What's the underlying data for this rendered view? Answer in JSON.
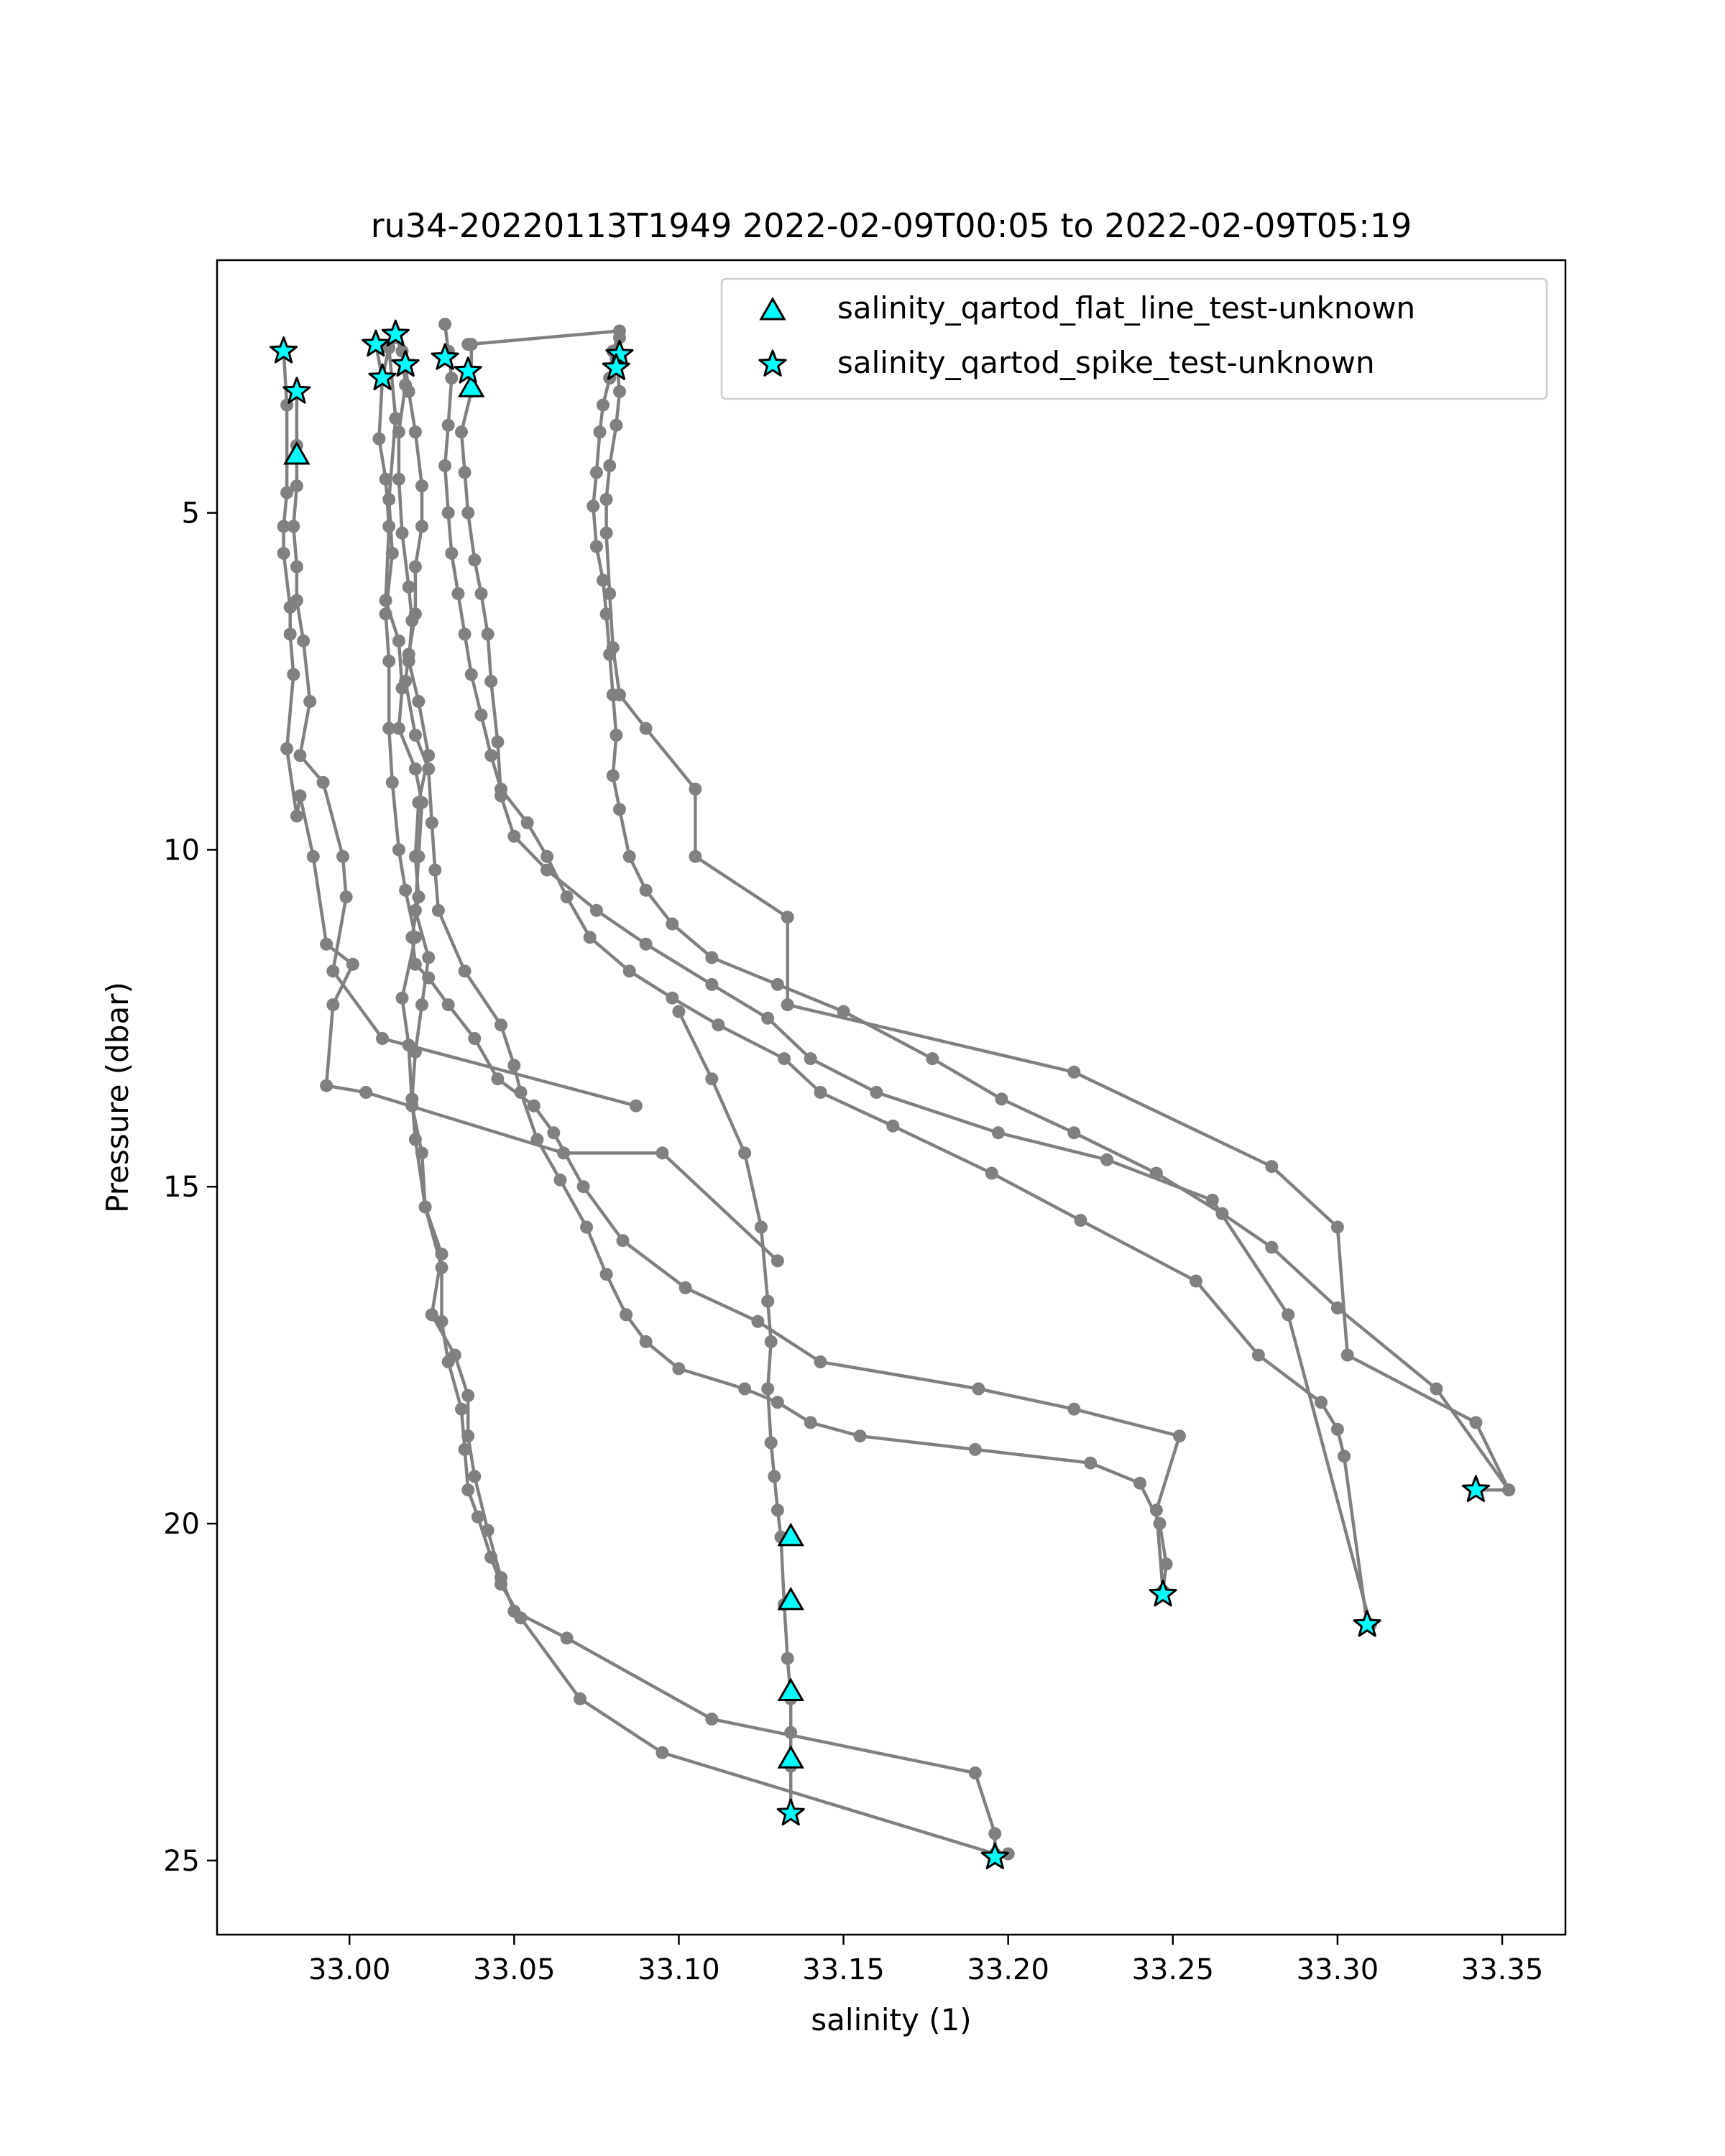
{
  "chart_data": {
    "type": "scatter",
    "title": "ru34-20220113T1949 2022-02-09T00:05 to 2022-02-09T05:19",
    "xlabel": "salinity (1)",
    "ylabel": "Pressure (dbar)",
    "xlim": [
      32.9598,
      33.3692
    ],
    "ylim": [
      26.1,
      1.25
    ],
    "y_inverted": true,
    "x_ticks": [
      "33.00",
      "33.05",
      "33.10",
      "33.15",
      "33.20",
      "33.25",
      "33.30",
      "33.35"
    ],
    "x_tick_values": [
      33.0,
      33.05,
      33.1,
      33.15,
      33.2,
      33.25,
      33.3,
      33.35
    ],
    "y_ticks": [
      "5",
      "10",
      "15",
      "20",
      "25"
    ],
    "y_tick_values": [
      5,
      10,
      15,
      20,
      25
    ],
    "grid": false,
    "legend_position": "top-right",
    "colors": {
      "profile": "#808080",
      "flag": "#00ffff",
      "flag_edge": "#000000"
    },
    "profile_series": [
      {
        "x": [
          32.98,
          32.981,
          32.981,
          32.98,
          32.98,
          32.982,
          32.982,
          32.983,
          32.981,
          32.984,
          32.985,
          32.989,
          32.993,
          33.001,
          32.995,
          32.993,
          33.005,
          33.065,
          33.095,
          33.13
        ],
        "y": [
          2.6,
          3.4,
          4.7,
          5.2,
          5.6,
          6.4,
          6.8,
          7.4,
          8.5,
          9.5,
          9.2,
          10.1,
          11.4,
          11.7,
          12.3,
          13.5,
          13.6,
          14.5,
          14.5,
          16.1
        ]
      },
      {
        "x": [
          32.984,
          32.984,
          32.984,
          32.983,
          32.984,
          32.984,
          32.986,
          32.988,
          32.985,
          32.992,
          32.998,
          32.999,
          32.995,
          33.01,
          33.087
        ],
        "y": [
          3.2,
          4.0,
          4.6,
          5.2,
          5.8,
          6.3,
          6.9,
          7.8,
          8.6,
          9.0,
          10.1,
          10.7,
          11.8,
          12.8,
          13.8
        ]
      },
      {
        "x": [
          33.008,
          33.01,
          33.009,
          33.011,
          33.012,
          33.011,
          33.015,
          33.016,
          33.015,
          33.02,
          33.022,
          33.021,
          33.02,
          33.024,
          33.022,
          33.02,
          33.019,
          33.02,
          33.023,
          33.028,
          33.025,
          33.032,
          33.036,
          33.036,
          33.038,
          33.042,
          33.046,
          33.05,
          33.066,
          33.11,
          33.19,
          33.196,
          33.196
        ],
        "y": [
          2.5,
          3.0,
          3.9,
          4.5,
          5.2,
          6.3,
          6.9,
          7.6,
          8.2,
          8.8,
          9.3,
          10.1,
          10.9,
          11.6,
          12.3,
          13.0,
          13.7,
          14.3,
          15.3,
          16.0,
          16.9,
          17.5,
          18.1,
          18.7,
          19.3,
          20.1,
          20.8,
          21.3,
          21.7,
          22.9,
          23.7,
          24.6,
          24.95
        ]
      },
      {
        "x": [
          33.01,
          33.012,
          33.014,
          33.012,
          33.013,
          33.011,
          33.012,
          33.012,
          33.013,
          33.015,
          33.017,
          33.02,
          33.016,
          33.018,
          33.019,
          33.022,
          33.023,
          33.028,
          33.028,
          33.03,
          33.034,
          33.035,
          33.036,
          33.039,
          33.043,
          33.046,
          33.052,
          33.07,
          33.095,
          33.196,
          33.2
        ],
        "y": [
          3.0,
          2.55,
          3.6,
          4.8,
          5.6,
          6.5,
          7.2,
          8.2,
          9.0,
          10.0,
          10.6,
          11.3,
          12.2,
          12.9,
          13.8,
          14.5,
          15.3,
          16.2,
          17.0,
          17.6,
          18.3,
          18.9,
          19.5,
          19.9,
          20.5,
          20.9,
          21.4,
          22.6,
          23.4,
          24.9,
          24.9
        ]
      },
      {
        "x": [
          33.014,
          33.016,
          33.017,
          33.015,
          33.015,
          33.016,
          33.018,
          33.019,
          33.018,
          33.021,
          33.024,
          33.021,
          33.02,
          33.021,
          33.019,
          33.02,
          33.024,
          33.03,
          33.038,
          33.045,
          33.056,
          33.062,
          33.071,
          33.083,
          33.102,
          33.124,
          33.143,
          33.191,
          33.22,
          33.252,
          33.245,
          33.247
        ],
        "y": [
          2.4,
          2.6,
          3.1,
          3.8,
          4.5,
          5.3,
          6.1,
          6.6,
          7.2,
          7.8,
          8.6,
          9.3,
          10.1,
          10.7,
          11.3,
          11.7,
          11.9,
          12.3,
          12.8,
          13.4,
          13.8,
          14.2,
          15.0,
          15.8,
          16.5,
          17.0,
          17.6,
          18.0,
          18.3,
          18.7,
          19.8,
          21.0
        ]
      },
      {
        "x": [
          33.017,
          33.018,
          33.02,
          33.022,
          33.022,
          33.02,
          33.02,
          33.018,
          33.017,
          33.02,
          33.024,
          33.025,
          33.026,
          33.027,
          33.035,
          33.046,
          33.05,
          33.052,
          33.057,
          33.064,
          33.072,
          33.078,
          33.084,
          33.09,
          33.1,
          33.12,
          33.13,
          33.14,
          33.155,
          33.19,
          33.225,
          33.24,
          33.246,
          33.248,
          33.247
        ],
        "y": [
          2.8,
          3.2,
          3.8,
          4.6,
          5.2,
          5.8,
          6.5,
          7.1,
          7.5,
          8.3,
          8.8,
          9.6,
          10.3,
          10.9,
          11.8,
          12.6,
          13.2,
          13.6,
          14.3,
          14.9,
          15.6,
          16.3,
          16.9,
          17.3,
          17.7,
          18.0,
          18.2,
          18.5,
          18.7,
          18.9,
          19.1,
          19.4,
          20.0,
          20.6,
          21.0
        ]
      },
      {
        "x": [
          33.029,
          33.03,
          33.031,
          33.03,
          33.029,
          33.03,
          33.031,
          33.033,
          33.035,
          33.037,
          33.04,
          33.043,
          33.046,
          33.054,
          33.06,
          33.066,
          33.073,
          33.085,
          33.098,
          33.112,
          33.132,
          33.143,
          33.165,
          33.195,
          33.222,
          33.257,
          33.276,
          33.295,
          33.3,
          33.302,
          33.309
        ],
        "y": [
          2.2,
          2.6,
          3.0,
          3.7,
          4.3,
          5.0,
          5.6,
          6.2,
          6.8,
          7.4,
          8.0,
          8.6,
          9.1,
          9.6,
          10.1,
          10.7,
          11.3,
          11.8,
          12.2,
          12.6,
          13.1,
          13.6,
          14.1,
          14.8,
          15.5,
          16.4,
          17.5,
          18.2,
          18.6,
          19.0,
          21.5
        ]
      },
      {
        "x": [
          33.037,
          33.037,
          33.034,
          33.035,
          33.036,
          33.038,
          33.04,
          33.042,
          33.043,
          33.045,
          33.046,
          33.05,
          33.06,
          33.075,
          33.09,
          33.11,
          33.127,
          33.14,
          33.16,
          33.197,
          33.23,
          33.262,
          33.285,
          33.31
        ],
        "y": [
          2.5,
          3.2,
          3.8,
          4.4,
          5.0,
          5.7,
          6.2,
          6.8,
          7.5,
          8.4,
          9.2,
          9.8,
          10.3,
          10.9,
          11.4,
          12.0,
          12.5,
          13.1,
          13.6,
          14.2,
          14.6,
          15.2,
          16.9,
          21.5
        ]
      },
      {
        "x": [
          33.036,
          33.082,
          33.08,
          33.079,
          33.077,
          33.076,
          33.075,
          33.074,
          33.075,
          33.077,
          33.078,
          33.079,
          33.08,
          33.081,
          33.08,
          33.082,
          33.085,
          33.09,
          33.098,
          33.11,
          33.13,
          33.15,
          33.177,
          33.198,
          33.22,
          33.245,
          33.265,
          33.28,
          33.3,
          33.33,
          33.352,
          33.342
        ],
        "y": [
          2.5,
          2.3,
          2.6,
          3.0,
          3.4,
          3.8,
          4.4,
          4.9,
          5.5,
          6.0,
          6.5,
          7.1,
          7.7,
          8.3,
          8.9,
          9.4,
          10.1,
          10.6,
          11.1,
          11.6,
          12.0,
          12.4,
          13.1,
          13.7,
          14.2,
          14.8,
          15.4,
          15.9,
          16.8,
          18.0,
          19.5,
          19.5
        ]
      },
      {
        "x": [
          33.082,
          33.081,
          33.082,
          33.081,
          33.079,
          33.078,
          33.078,
          33.079,
          33.08,
          33.082,
          33.09,
          33.105,
          33.105,
          33.133,
          33.133,
          33.22,
          33.28,
          33.3,
          33.303,
          33.342,
          33.352
        ],
        "y": [
          2.4,
          2.7,
          3.2,
          3.7,
          4.3,
          4.8,
          5.3,
          6.2,
          7.0,
          7.7,
          8.2,
          9.1,
          10.1,
          11.0,
          12.3,
          13.3,
          14.7,
          15.6,
          17.5,
          18.5,
          19.5
        ]
      },
      {
        "x": [
          33.1,
          33.11,
          33.12,
          33.125,
          33.127,
          33.128,
          33.127,
          33.128,
          33.129,
          33.13,
          33.131,
          33.132,
          33.133,
          33.134,
          33.134,
          33.134,
          33.134
        ],
        "y": [
          12.4,
          13.4,
          14.5,
          15.6,
          16.7,
          17.3,
          18.0,
          18.8,
          19.3,
          19.8,
          20.2,
          21.2,
          22.0,
          22.6,
          23.1,
          23.6,
          24.3
        ]
      }
    ],
    "series": [
      {
        "name": "salinity_qartod_flat_line_test-unknown",
        "marker": "triangle",
        "x": [
          32.984,
          33.037,
          33.134,
          33.134,
          33.134,
          33.134
        ],
        "y": [
          4.15,
          3.15,
          20.2,
          21.15,
          22.5,
          23.5
        ]
      },
      {
        "name": "salinity_qartod_spike_test-unknown",
        "marker": "star",
        "x": [
          32.98,
          32.984,
          33.008,
          33.01,
          33.014,
          33.017,
          33.029,
          33.036,
          33.082,
          33.081,
          33.134,
          33.196,
          33.247,
          33.309,
          33.342
        ],
        "y": [
          2.6,
          3.2,
          2.5,
          3.0,
          2.35,
          2.8,
          2.7,
          2.9,
          2.65,
          2.85,
          24.3,
          24.95,
          21.05,
          21.5,
          19.5
        ]
      }
    ]
  }
}
